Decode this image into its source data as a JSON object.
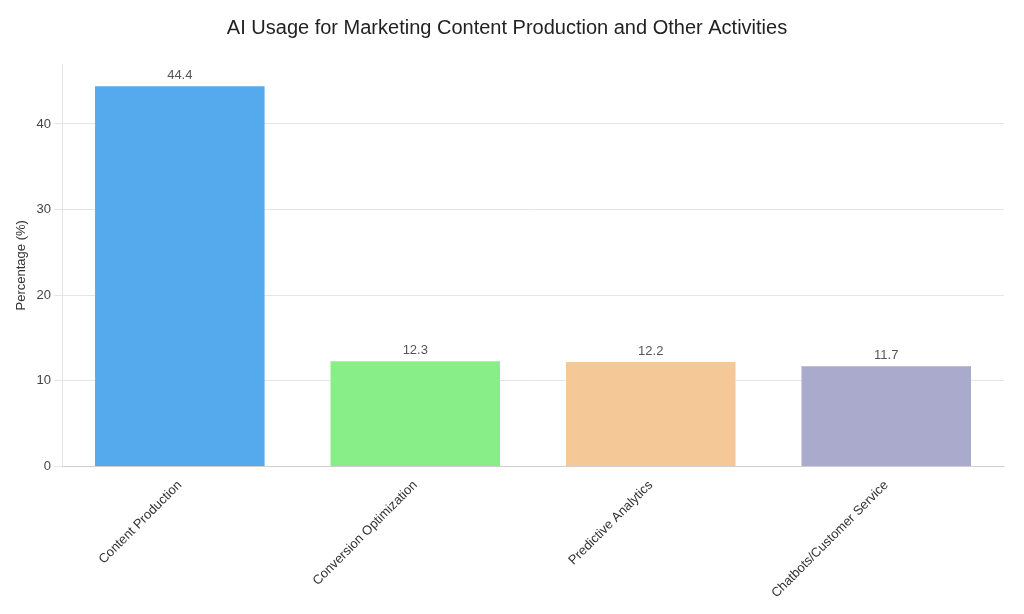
{
  "chart_data": {
    "type": "bar",
    "title": "AI Usage for Marketing Content Production and Other Activities",
    "categories": [
      "Content Production",
      "Conversion Optimization",
      "Predictive Analytics",
      "Chatbots/Customer Service"
    ],
    "values": [
      44.4,
      12.3,
      12.2,
      11.7
    ],
    "colors": [
      "#55AAEE",
      "#88EE88",
      "#F5C898",
      "#AAAACC"
    ],
    "ylabel": "Percentage (%)",
    "ylim": [
      0,
      47
    ],
    "yticks": [
      0,
      10,
      20,
      30,
      40
    ],
    "grid": true,
    "data_labels": true
  }
}
